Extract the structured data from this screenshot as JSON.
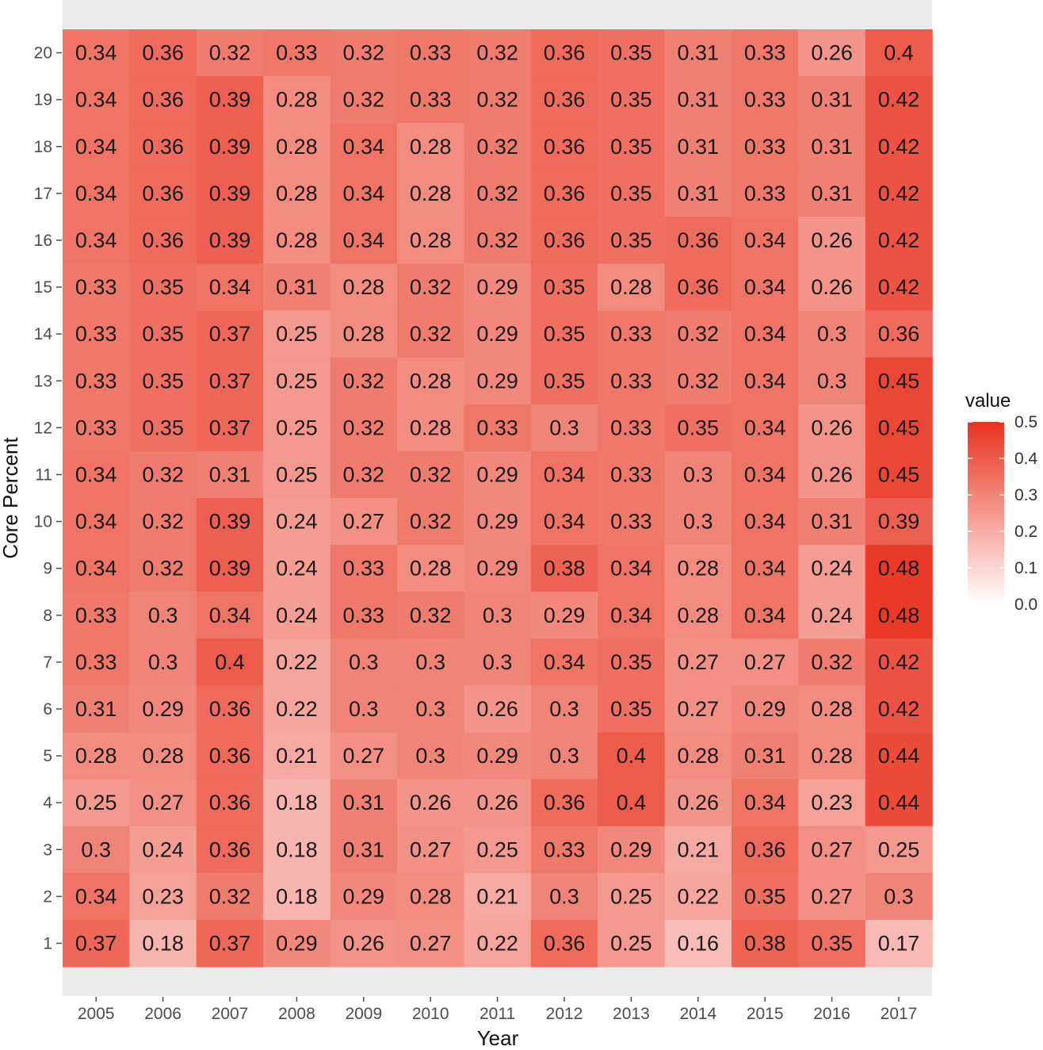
{
  "chart_data": {
    "type": "heatmap",
    "title": "",
    "xlabel": "Year",
    "ylabel": "Core Percent",
    "x_categories": [
      "2005",
      "2006",
      "2007",
      "2008",
      "2009",
      "2010",
      "2011",
      "2012",
      "2013",
      "2014",
      "2015",
      "2016",
      "2017"
    ],
    "y_categories": [
      "1",
      "2",
      "3",
      "4",
      "5",
      "6",
      "7",
      "8",
      "9",
      "10",
      "11",
      "12",
      "13",
      "14",
      "15",
      "16",
      "17",
      "18",
      "19",
      "20"
    ],
    "values_by_row_top_to_bottom": [
      {
        "y": "20",
        "values": [
          0.34,
          0.36,
          0.32,
          0.33,
          0.32,
          0.33,
          0.32,
          0.36,
          0.35,
          0.31,
          0.33,
          0.26,
          0.4
        ]
      },
      {
        "y": "19",
        "values": [
          0.34,
          0.36,
          0.39,
          0.28,
          0.32,
          0.33,
          0.32,
          0.36,
          0.35,
          0.31,
          0.33,
          0.31,
          0.42
        ]
      },
      {
        "y": "18",
        "values": [
          0.34,
          0.36,
          0.39,
          0.28,
          0.34,
          0.28,
          0.32,
          0.36,
          0.35,
          0.31,
          0.33,
          0.31,
          0.42
        ]
      },
      {
        "y": "17",
        "values": [
          0.34,
          0.36,
          0.39,
          0.28,
          0.34,
          0.28,
          0.32,
          0.36,
          0.35,
          0.31,
          0.33,
          0.31,
          0.42
        ]
      },
      {
        "y": "16",
        "values": [
          0.34,
          0.36,
          0.39,
          0.28,
          0.34,
          0.28,
          0.32,
          0.36,
          0.35,
          0.36,
          0.34,
          0.26,
          0.42
        ]
      },
      {
        "y": "15",
        "values": [
          0.33,
          0.35,
          0.34,
          0.31,
          0.28,
          0.32,
          0.29,
          0.35,
          0.28,
          0.36,
          0.34,
          0.26,
          0.42
        ]
      },
      {
        "y": "14",
        "values": [
          0.33,
          0.35,
          0.37,
          0.25,
          0.28,
          0.32,
          0.29,
          0.35,
          0.33,
          0.32,
          0.34,
          0.3,
          0.36
        ]
      },
      {
        "y": "13",
        "values": [
          0.33,
          0.35,
          0.37,
          0.25,
          0.32,
          0.28,
          0.29,
          0.35,
          0.33,
          0.32,
          0.34,
          0.3,
          0.45
        ]
      },
      {
        "y": "12",
        "values": [
          0.33,
          0.35,
          0.37,
          0.25,
          0.32,
          0.28,
          0.33,
          0.3,
          0.33,
          0.35,
          0.34,
          0.26,
          0.45
        ]
      },
      {
        "y": "11",
        "values": [
          0.34,
          0.32,
          0.31,
          0.25,
          0.32,
          0.32,
          0.29,
          0.34,
          0.33,
          0.3,
          0.34,
          0.26,
          0.45
        ]
      },
      {
        "y": "10",
        "values": [
          0.34,
          0.32,
          0.39,
          0.24,
          0.27,
          0.32,
          0.29,
          0.34,
          0.33,
          0.3,
          0.34,
          0.31,
          0.39
        ]
      },
      {
        "y": "9",
        "values": [
          0.34,
          0.32,
          0.39,
          0.24,
          0.33,
          0.28,
          0.29,
          0.38,
          0.34,
          0.28,
          0.34,
          0.24,
          0.48
        ]
      },
      {
        "y": "8",
        "values": [
          0.33,
          0.3,
          0.34,
          0.24,
          0.33,
          0.32,
          0.3,
          0.29,
          0.34,
          0.28,
          0.34,
          0.24,
          0.48
        ]
      },
      {
        "y": "7",
        "values": [
          0.33,
          0.3,
          0.4,
          0.22,
          0.3,
          0.3,
          0.3,
          0.34,
          0.35,
          0.27,
          0.27,
          0.32,
          0.42
        ]
      },
      {
        "y": "6",
        "values": [
          0.31,
          0.29,
          0.36,
          0.22,
          0.3,
          0.3,
          0.26,
          0.3,
          0.35,
          0.27,
          0.29,
          0.28,
          0.42
        ]
      },
      {
        "y": "5",
        "values": [
          0.28,
          0.28,
          0.36,
          0.21,
          0.27,
          0.3,
          0.29,
          0.3,
          0.4,
          0.28,
          0.31,
          0.28,
          0.44
        ]
      },
      {
        "y": "4",
        "values": [
          0.25,
          0.27,
          0.36,
          0.18,
          0.31,
          0.26,
          0.26,
          0.36,
          0.4,
          0.26,
          0.34,
          0.23,
          0.44
        ]
      },
      {
        "y": "3",
        "values": [
          0.3,
          0.24,
          0.36,
          0.18,
          0.31,
          0.27,
          0.25,
          0.33,
          0.29,
          0.21,
          0.36,
          0.27,
          0.25
        ]
      },
      {
        "y": "2",
        "values": [
          0.34,
          0.23,
          0.32,
          0.18,
          0.29,
          0.28,
          0.21,
          0.3,
          0.25,
          0.22,
          0.35,
          0.27,
          0.3
        ]
      },
      {
        "y": "1",
        "values": [
          0.37,
          0.18,
          0.37,
          0.29,
          0.26,
          0.27,
          0.22,
          0.36,
          0.25,
          0.16,
          0.38,
          0.35,
          0.17
        ]
      }
    ],
    "legend": {
      "title": "value",
      "position": "right",
      "ticks": [
        "0.5",
        "0.4",
        "0.3",
        "0.2",
        "0.1",
        "0.0"
      ],
      "range": [
        0.0,
        0.5
      ],
      "color_low": "#ffffff",
      "color_high": "#e8321e"
    },
    "panel_background": "#ebebeb",
    "grid": false
  }
}
